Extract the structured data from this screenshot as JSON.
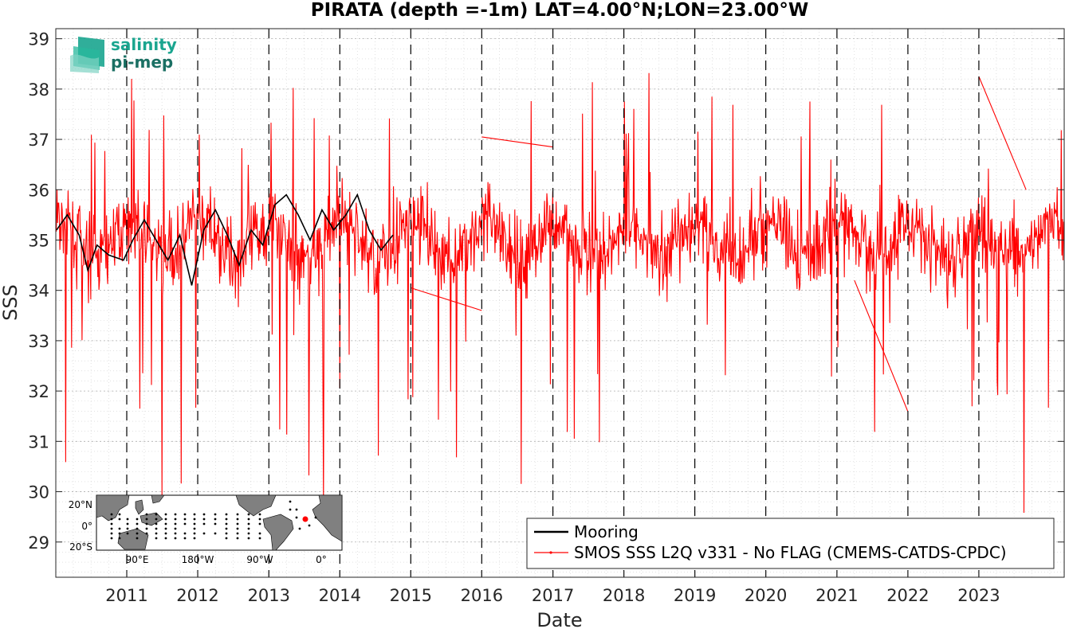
{
  "chart_data": {
    "type": "line",
    "title": "PIRATA (depth =-1m) LAT=4.00°N;LON=23.00°W",
    "xlabel": "Date",
    "ylabel": "SSS",
    "xlim": [
      "2010-01-01",
      "2024-03-15"
    ],
    "ylim": [
      28.3,
      39.2
    ],
    "yticks": [
      29,
      30,
      31,
      32,
      33,
      34,
      35,
      36,
      37,
      38,
      39
    ],
    "xticks": [
      {
        "date": "2011-01-01",
        "label": "2011"
      },
      {
        "date": "2012-01-01",
        "label": "2012"
      },
      {
        "date": "2013-01-01",
        "label": "2013"
      },
      {
        "date": "2014-01-01",
        "label": "2014"
      },
      {
        "date": "2015-01-01",
        "label": "2015"
      },
      {
        "date": "2016-01-01",
        "label": "2016"
      },
      {
        "date": "2017-01-01",
        "label": "2017"
      },
      {
        "date": "2018-01-01",
        "label": "2018"
      },
      {
        "date": "2019-01-01",
        "label": "2019"
      },
      {
        "date": "2020-01-01",
        "label": "2020"
      },
      {
        "date": "2021-01-01",
        "label": "2021"
      },
      {
        "date": "2022-01-01",
        "label": "2022"
      },
      {
        "date": "2023-01-01",
        "label": "2023"
      }
    ],
    "grid": true,
    "legend_position": "bottom-right",
    "series": [
      {
        "name": "Mooring",
        "color": "#000000",
        "points": [
          [
            "2010-01-05",
            35.2
          ],
          [
            "2010-03-01",
            35.5
          ],
          [
            "2010-05-01",
            35.1
          ],
          [
            "2010-06-15",
            34.4
          ],
          [
            "2010-08-01",
            34.9
          ],
          [
            "2010-10-01",
            34.7
          ],
          [
            "2010-12-15",
            34.6
          ],
          [
            "2011-02-01",
            35.0
          ],
          [
            "2011-04-01",
            35.4
          ],
          [
            "2011-06-01",
            35.0
          ],
          [
            "2011-08-01",
            34.6
          ],
          [
            "2011-10-01",
            35.1
          ],
          [
            "2011-12-01",
            34.1
          ],
          [
            "2012-02-01",
            35.2
          ],
          [
            "2012-04-01",
            35.6
          ],
          [
            "2012-06-01",
            35.1
          ],
          [
            "2012-08-01",
            34.5
          ],
          [
            "2012-10-01",
            35.2
          ],
          [
            "2012-12-01",
            34.9
          ],
          [
            "2013-02-01",
            35.7
          ],
          [
            "2013-04-01",
            35.9
          ],
          [
            "2013-06-01",
            35.5
          ],
          [
            "2013-08-01",
            35.0
          ],
          [
            "2013-10-01",
            35.6
          ],
          [
            "2013-12-01",
            35.2
          ],
          [
            "2014-02-01",
            35.5
          ],
          [
            "2014-04-01",
            35.9
          ],
          [
            "2014-06-01",
            35.2
          ],
          [
            "2014-08-01",
            34.8
          ],
          [
            "2014-10-01",
            35.1
          ]
        ]
      },
      {
        "name": "SMOS SSS L2Q v331 - No FLAG  (CMEMS-CATDS-CPDC)",
        "color": "#ff0000"
      }
    ]
  },
  "inset_map": {
    "y_labels": [
      "20°N",
      "0°",
      "20°S"
    ],
    "x_labels": [
      "90°E",
      "180°W",
      "90°W",
      "0°"
    ],
    "highlight_color": "#ff0000"
  },
  "logo": {
    "line1": "salinity",
    "line2": "pi-mep"
  }
}
